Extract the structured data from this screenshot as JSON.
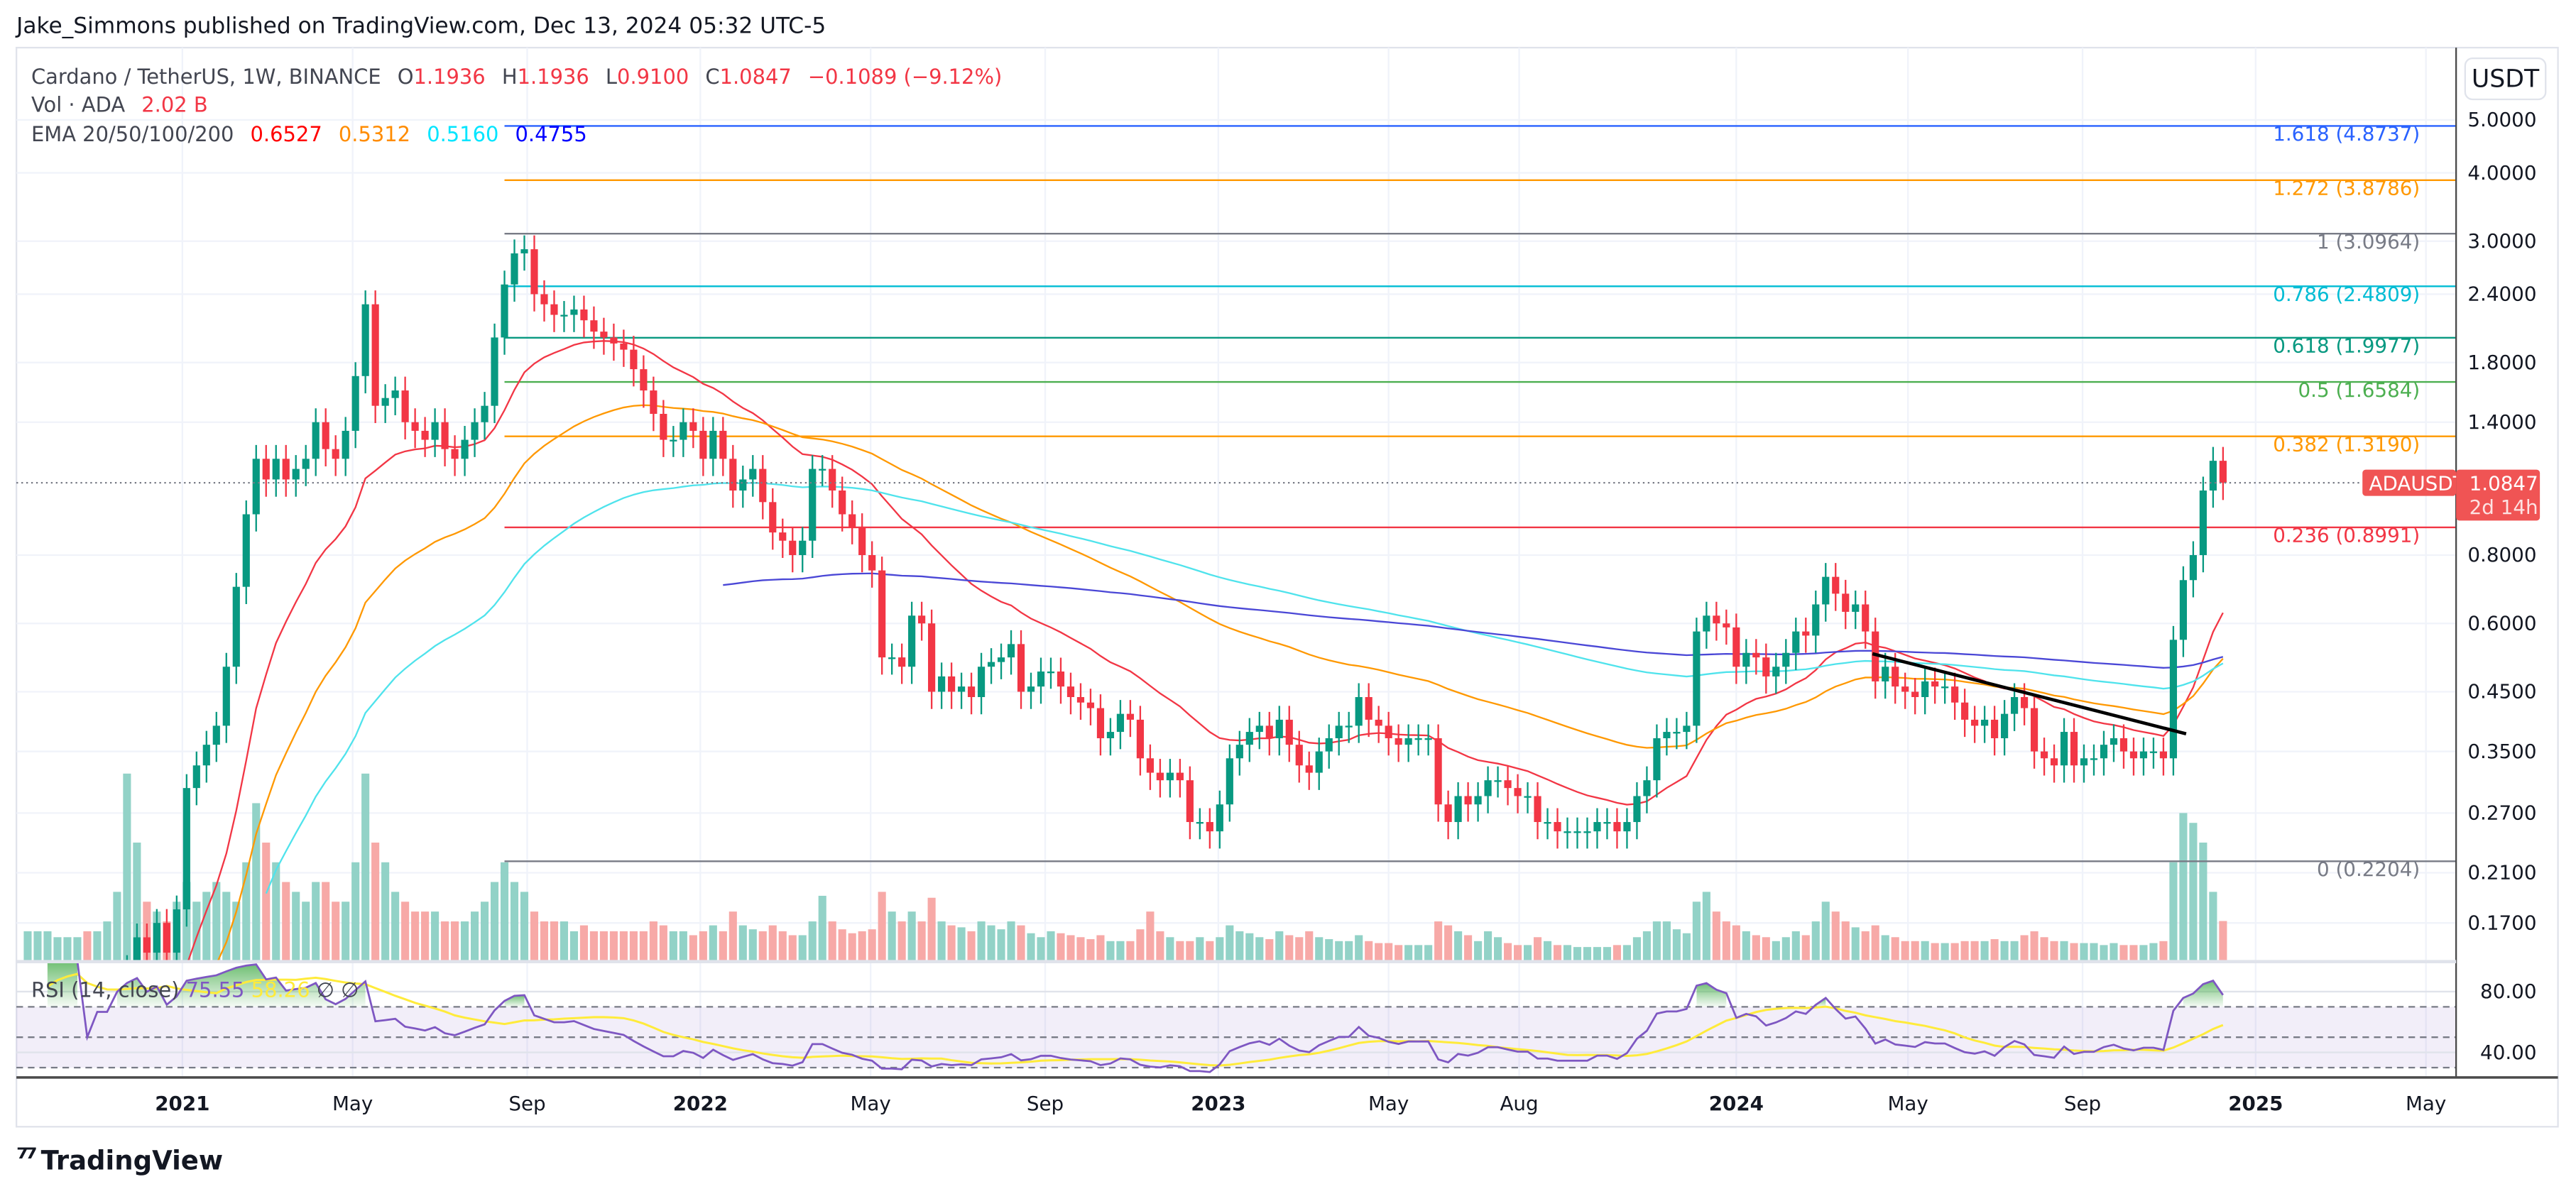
{
  "header": {
    "published": "Jake_Simmons published on TradingView.com, Dec 13, 2024 05:32 UTC-5"
  },
  "legend": {
    "symbol": "Cardano / TetherUS, 1W, BINANCE",
    "o_label": "O",
    "open": "1.1936",
    "h_label": "H",
    "high": "1.1936",
    "l_label": "L",
    "low": "0.9100",
    "c_label": "C",
    "close": "1.0847",
    "change": "−0.1089 (−9.12%)",
    "vol_label": "Vol · ADA",
    "vol_value": "2.02 B",
    "ema_label": "EMA 20/50/100/200",
    "ema_values": [
      "0.6527",
      "0.5312",
      "0.5160",
      "0.4755"
    ],
    "ema_colors": [
      "#ff0000",
      "#ff8c00",
      "#00e5ff",
      "#0000ff"
    ]
  },
  "price_axis": {
    "currency": "USDT",
    "ticks": [
      "5.0000",
      "4.0000",
      "3.0000",
      "2.4000",
      "1.8000",
      "1.4000",
      "0.8000",
      "0.6000",
      "0.4500",
      "0.3500",
      "0.2700",
      "0.2100",
      "0.1700"
    ],
    "scale": "log",
    "last_price": "1.0847",
    "countdown": "2d 14h",
    "symbol_tag": "ADAUSDT"
  },
  "time_axis": {
    "ticks": [
      {
        "label": "2021",
        "date": "2021-01-01",
        "major": true
      },
      {
        "label": "May",
        "date": "2021-05-01"
      },
      {
        "label": "Sep",
        "date": "2021-09-01"
      },
      {
        "label": "2022",
        "date": "2022-01-01",
        "major": true
      },
      {
        "label": "May",
        "date": "2022-05-01"
      },
      {
        "label": "Sep",
        "date": "2022-09-01"
      },
      {
        "label": "2023",
        "date": "2023-01-01",
        "major": true
      },
      {
        "label": "May",
        "date": "2023-05-01"
      },
      {
        "label": "Aug",
        "date": "2023-08-01"
      },
      {
        "label": "2024",
        "date": "2024-01-01",
        "major": true
      },
      {
        "label": "May",
        "date": "2024-05-01"
      },
      {
        "label": "Sep",
        "date": "2024-09-01"
      },
      {
        "label": "2025",
        "date": "2025-01-01",
        "major": true
      },
      {
        "label": "May",
        "date": "2025-05-01"
      }
    ]
  },
  "rsi": {
    "label": "RSI (14, close)",
    "value": "75.55",
    "ma_value": "58.26",
    "na1": "∅",
    "na2": "∅",
    "ticks": [
      "80.00",
      "40.00"
    ],
    "line_color": "#7e57c2",
    "ma_color": "#ffeb3b"
  },
  "chart_data": {
    "type": "candlestick",
    "interval": "1W",
    "start": "2020-09-14",
    "ylim": [
      0.145,
      5.6
    ],
    "yscale": "log",
    "up_color": "#089981",
    "down_color": "#f23645",
    "closes": [
      0.09,
      0.1,
      0.1,
      0.1,
      0.1,
      0.1,
      0.09,
      0.1,
      0.1,
      0.12,
      0.14,
      0.16,
      0.15,
      0.17,
      0.15,
      0.18,
      0.3,
      0.33,
      0.36,
      0.39,
      0.5,
      0.7,
      0.95,
      1.2,
      1.1,
      1.2,
      1.1,
      1.15,
      1.2,
      1.4,
      1.25,
      1.2,
      1.35,
      1.7,
      2.3,
      1.5,
      1.55,
      1.6,
      1.4,
      1.35,
      1.3,
      1.4,
      1.25,
      1.2,
      1.3,
      1.4,
      1.5,
      2.0,
      2.5,
      2.85,
      2.9,
      2.4,
      2.3,
      2.2,
      2.2,
      2.25,
      2.15,
      2.05,
      2.0,
      1.95,
      1.9,
      1.75,
      1.6,
      1.45,
      1.3,
      1.3,
      1.4,
      1.35,
      1.2,
      1.35,
      1.2,
      1.05,
      1.1,
      1.15,
      1.0,
      0.88,
      0.85,
      0.8,
      0.85,
      1.15,
      1.15,
      1.05,
      0.95,
      0.9,
      0.8,
      0.75,
      0.52,
      0.52,
      0.5,
      0.62,
      0.6,
      0.45,
      0.48,
      0.45,
      0.46,
      0.44,
      0.5,
      0.51,
      0.52,
      0.55,
      0.45,
      0.46,
      0.49,
      0.49,
      0.46,
      0.44,
      0.43,
      0.42,
      0.37,
      0.38,
      0.41,
      0.4,
      0.34,
      0.32,
      0.31,
      0.32,
      0.31,
      0.26,
      0.26,
      0.25,
      0.28,
      0.34,
      0.36,
      0.38,
      0.39,
      0.37,
      0.4,
      0.36,
      0.33,
      0.32,
      0.35,
      0.37,
      0.39,
      0.39,
      0.44,
      0.4,
      0.39,
      0.37,
      0.36,
      0.37,
      0.37,
      0.37,
      0.28,
      0.26,
      0.29,
      0.28,
      0.29,
      0.31,
      0.31,
      0.3,
      0.29,
      0.29,
      0.26,
      0.26,
      0.25,
      0.25,
      0.25,
      0.25,
      0.26,
      0.26,
      0.25,
      0.26,
      0.29,
      0.31,
      0.37,
      0.38,
      0.38,
      0.39,
      0.58,
      0.62,
      0.6,
      0.59,
      0.5,
      0.53,
      0.52,
      0.48,
      0.5,
      0.53,
      0.58,
      0.57,
      0.65,
      0.73,
      0.68,
      0.63,
      0.65,
      0.58,
      0.47,
      0.5,
      0.46,
      0.45,
      0.44,
      0.47,
      0.46,
      0.46,
      0.43,
      0.4,
      0.39,
      0.4,
      0.37,
      0.41,
      0.44,
      0.42,
      0.35,
      0.34,
      0.33,
      0.38,
      0.33,
      0.34,
      0.34,
      0.36,
      0.37,
      0.35,
      0.34,
      0.35,
      0.35,
      0.34,
      0.56,
      0.72,
      0.8,
      1.05,
      1.19,
      1.0847
    ],
    "volumes_b": [
      1.5,
      1.5,
      1.5,
      1.2,
      1.2,
      1.2,
      1.5,
      1.5,
      2,
      3.5,
      9.5,
      6,
      3,
      2.5,
      2,
      3,
      4,
      3,
      3.5,
      4,
      3.5,
      3,
      5,
      8,
      6,
      5,
      4,
      3.5,
      3,
      4,
      4,
      3,
      3,
      5,
      9.5,
      6,
      5,
      3.5,
      3,
      2.5,
      2.5,
      2.5,
      2,
      2,
      2,
      2.5,
      3,
      4,
      5,
      4,
      3.5,
      2.5,
      2,
      2,
      2,
      1.5,
      1.8,
      1.5,
      1.5,
      1.5,
      1.5,
      1.5,
      1.5,
      2,
      1.8,
      1.5,
      1.5,
      1.3,
      1.5,
      1.8,
      1.5,
      2.5,
      1.8,
      1.6,
      1.5,
      1.8,
      1.5,
      1.3,
      1.3,
      2,
      3.3,
      2,
      1.6,
      1.4,
      1.5,
      1.6,
      3.5,
      2.5,
      2,
      2.5,
      2,
      3.2,
      2,
      1.8,
      1.7,
      1.5,
      2,
      1.8,
      1.6,
      2,
      1.8,
      1.4,
      1.2,
      1.5,
      1.4,
      1.3,
      1.2,
      1.1,
      1.3,
      1,
      1,
      1,
      1.6,
      2.5,
      1.5,
      1.2,
      1,
      1,
      1.2,
      1,
      1.2,
      1.8,
      1.5,
      1.4,
      1.2,
      1.1,
      1.5,
      1.3,
      1.2,
      1.5,
      1.2,
      1.1,
      1.0,
      1.0,
      1.3,
      1.0,
      0.9,
      0.9,
      0.8,
      0.8,
      0.8,
      0.8,
      2.0,
      1.8,
      1.5,
      1.3,
      1.0,
      1.5,
      1.2,
      0.9,
      0.8,
      0.8,
      1.2,
      1.0,
      0.8,
      0.8,
      0.7,
      0.7,
      0.7,
      0.7,
      0.8,
      0.8,
      1.2,
      1.5,
      2.0,
      2.0,
      1.6,
      1.4,
      3.0,
      3.5,
      2.5,
      2.0,
      1.8,
      1.5,
      1.3,
      1.2,
      1.0,
      1.2,
      1.5,
      1.3,
      2.0,
      3.0,
      2.5,
      2.0,
      1.7,
      1.5,
      1.8,
      1.3,
      1.2,
      1.0,
      1.0,
      1.0,
      0.9,
      0.9,
      0.9,
      1.0,
      1.0,
      1.0,
      1.1,
      1.0,
      1.0,
      1.3,
      1.5,
      1.2,
      1.0,
      1.0,
      0.9,
      0.9,
      0.9,
      0.8,
      0.9,
      0.8,
      0.8,
      0.8,
      0.9,
      1.0,
      5.0,
      7.5,
      7.0,
      6.0,
      3.5,
      2.02
    ],
    "ema_periods": [
      20,
      50,
      100,
      200
    ],
    "ema_line_colors": [
      "#f23645",
      "#ff9800",
      "#4fe3ec",
      "#4a47d6"
    ],
    "fib_levels": [
      {
        "label": "1.618 (4.8737)",
        "price": 4.8737,
        "color": "#2962ff"
      },
      {
        "label": "1.272 (3.8786)",
        "price": 3.8786,
        "color": "#ff9800"
      },
      {
        "label": "1 (3.0964)",
        "price": 3.0964,
        "color": "#787b86"
      },
      {
        "label": "0.786 (2.4809)",
        "price": 2.4809,
        "color": "#00bcd4"
      },
      {
        "label": "0.618 (1.9977)",
        "price": 1.9977,
        "color": "#089981"
      },
      {
        "label": "0.5 (1.6584)",
        "price": 1.6584,
        "color": "#4caf50"
      },
      {
        "label": "0.382 (1.3190)",
        "price": 1.319,
        "color": "#ff9800"
      },
      {
        "label": "0.236 (0.8991)",
        "price": 0.8991,
        "color": "#f23645"
      },
      {
        "label": "0 (0.2204)",
        "price": 0.2204,
        "color": "#787b86"
      }
    ],
    "fib_start": "2021-08-16",
    "trendline": {
      "from": {
        "date": "2024-04-06",
        "price": 0.528
      },
      "to": {
        "date": "2024-11-13",
        "price": 0.377
      },
      "color": "#000000"
    }
  },
  "branding": {
    "logo_text": "TradingView"
  }
}
